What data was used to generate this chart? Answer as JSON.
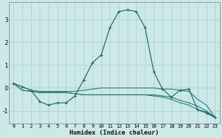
{
  "xlabel": "Humidex (Indice chaleur)",
  "background_color": "#cce8e8",
  "grid_color": "#aed0d0",
  "line_color": "#1a6b6b",
  "x": [
    0,
    1,
    2,
    3,
    4,
    5,
    6,
    7,
    8,
    9,
    10,
    11,
    12,
    13,
    14,
    15,
    16,
    17,
    18,
    19,
    20,
    21,
    22,
    23
  ],
  "y_main": [
    0.2,
    0.05,
    -0.1,
    -0.6,
    -0.75,
    -0.65,
    -0.65,
    -0.35,
    0.35,
    1.1,
    1.45,
    2.65,
    3.35,
    3.42,
    3.35,
    2.65,
    0.7,
    -0.05,
    -0.4,
    -0.1,
    -0.05,
    -0.95,
    -1.1,
    -1.3
  ],
  "y_line2": [
    0.2,
    0.05,
    -0.1,
    -0.15,
    -0.15,
    -0.15,
    -0.15,
    -0.15,
    -0.1,
    -0.05,
    0.0,
    0.0,
    0.0,
    0.0,
    0.0,
    0.0,
    0.0,
    -0.05,
    -0.05,
    -0.1,
    -0.15,
    -0.5,
    -0.75,
    -1.3
  ],
  "y_line3": [
    0.2,
    -0.1,
    -0.15,
    -0.2,
    -0.2,
    -0.2,
    -0.2,
    -0.25,
    -0.3,
    -0.3,
    -0.3,
    -0.3,
    -0.3,
    -0.3,
    -0.3,
    -0.3,
    -0.3,
    -0.35,
    -0.4,
    -0.55,
    -0.65,
    -0.8,
    -1.0,
    -1.3
  ],
  "y_line4": [
    0.2,
    -0.1,
    -0.15,
    -0.2,
    -0.2,
    -0.2,
    -0.2,
    -0.25,
    -0.3,
    -0.3,
    -0.3,
    -0.3,
    -0.3,
    -0.3,
    -0.3,
    -0.3,
    -0.35,
    -0.4,
    -0.5,
    -0.65,
    -0.75,
    -0.95,
    -1.05,
    -1.3
  ],
  "ylim": [
    -1.55,
    3.75
  ],
  "yticks": [
    -1,
    0,
    1,
    2,
    3
  ],
  "xticks": [
    0,
    1,
    2,
    3,
    4,
    5,
    6,
    7,
    8,
    9,
    10,
    11,
    12,
    13,
    14,
    15,
    16,
    17,
    18,
    19,
    20,
    21,
    22,
    23
  ]
}
